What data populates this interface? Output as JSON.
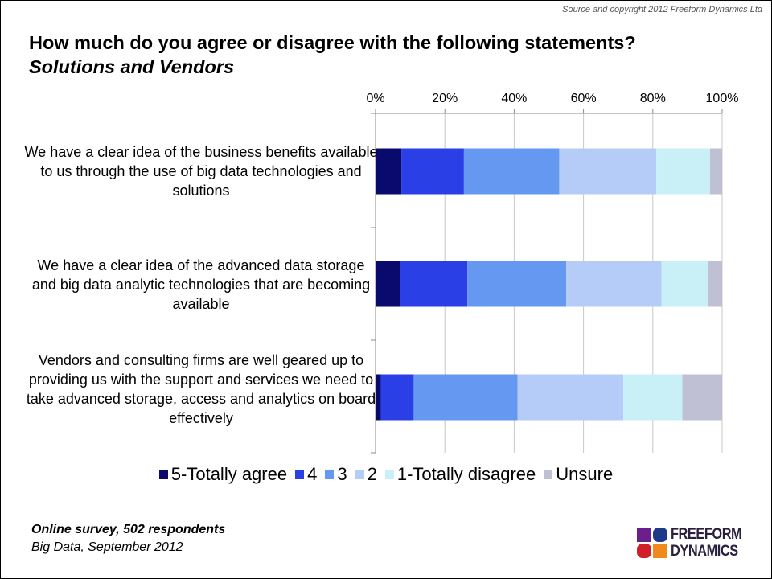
{
  "copyright": "Source and copyright 2012 Freeform Dynamics Ltd",
  "title": "How much do you agree or disagree with the following statements?",
  "subtitle": "Solutions and Vendors",
  "footer": {
    "line1": "Online survey, 502 respondents",
    "line2": "Big Data, September 2012"
  },
  "logo": {
    "line1": "FREEFORM",
    "line2": "DYNAMICS"
  },
  "chart_data": {
    "type": "bar",
    "orientation": "horizontal",
    "stacked": "percent",
    "x_ticks": [
      "0%",
      "20%",
      "40%",
      "60%",
      "80%",
      "100%"
    ],
    "xlim": [
      0,
      100
    ],
    "legend_position": "bottom",
    "categories": [
      "We have a clear idea of the business benefits available to us through the use of big data technologies and solutions",
      "We have a clear idea of the advanced data storage and big data analytic technologies that are becoming available",
      "Vendors and consulting firms are well geared up to providing us with the support and services we need to take advanced storage, access and analytics on board effectively"
    ],
    "series": [
      {
        "name": "5-Totally agree",
        "color": "#0a0a6e",
        "values": [
          7.5,
          7,
          1.5
        ]
      },
      {
        "name": "4",
        "color": "#2a3fe6",
        "values": [
          18,
          19.5,
          9.5
        ]
      },
      {
        "name": "3",
        "color": "#6598f0",
        "values": [
          27.5,
          28.5,
          30
        ]
      },
      {
        "name": "2",
        "color": "#b5ccf8",
        "values": [
          28,
          27.5,
          30.5
        ]
      },
      {
        "name": "1-Totally disagree",
        "color": "#c8f0f6",
        "values": [
          15.5,
          13.5,
          17
        ]
      },
      {
        "name": "Unsure",
        "color": "#c0c0d4",
        "values": [
          3.5,
          4,
          11.5
        ]
      }
    ]
  }
}
